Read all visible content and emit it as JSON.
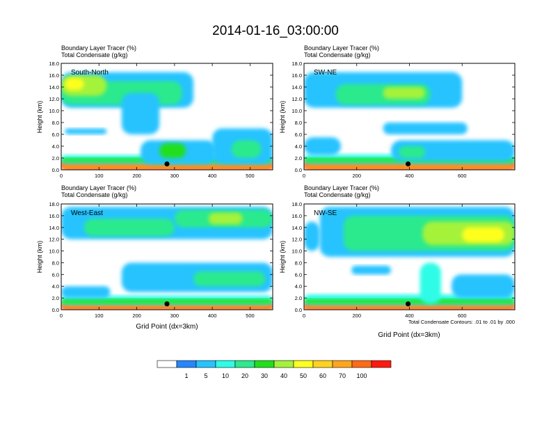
{
  "title": "2014-01-16_03:00:00",
  "panel_header_line1": "Boundary Layer Tracer   (%)",
  "panel_header_line2": "Total Condensate   (g/kg)",
  "y_axis_label": "Height (km)",
  "x_axis_label": "Grid Point (dx=3km)",
  "contour_note": "Total Condensate Contours: .01 to .01 by .000",
  "colorbar": {
    "colors": [
      "#ffffff",
      "#2686ff",
      "#27c3ff",
      "#2efce6",
      "#2cea8d",
      "#22df1c",
      "#a5f23a",
      "#ffff1f",
      "#ffd21f",
      "#ffa51c",
      "#ff6a16",
      "#ff1a10"
    ],
    "labels": [
      "1",
      "5",
      "10",
      "20",
      "30",
      "40",
      "50",
      "60",
      "70",
      "100"
    ]
  },
  "chart_data": [
    {
      "type": "heatmap",
      "panel": "South-North",
      "xlim": [
        0,
        560
      ],
      "ylim": [
        0,
        18
      ],
      "x_ticks": [
        "0",
        "100",
        "200",
        "300",
        "400",
        "500"
      ],
      "y_ticks": [
        "0.0",
        "2.0",
        "4.0",
        "6.0",
        "8.0",
        "10.0",
        "12.0",
        "14.0",
        "16.0",
        "18.0"
      ],
      "marker": {
        "x": 280,
        "y": 1.0
      },
      "blobs": [
        {
          "x0": 0,
          "x1": 560,
          "y0": 0,
          "y1": 1.6,
          "level": 11
        },
        {
          "x0": 0,
          "x1": 560,
          "y0": 0.1,
          "y1": 1.0,
          "level": 9
        },
        {
          "x0": 0,
          "x1": 560,
          "y0": 1.0,
          "y1": 2.5,
          "level": 3
        },
        {
          "x0": 0,
          "x1": 560,
          "y0": 1.3,
          "y1": 2.0,
          "level": 5
        },
        {
          "x0": 0,
          "x1": 350,
          "y0": 10.5,
          "y1": 16.5,
          "level": 2
        },
        {
          "x0": 0,
          "x1": 320,
          "y0": 11.0,
          "y1": 15.0,
          "level": 4
        },
        {
          "x0": 0,
          "x1": 120,
          "y0": 12.5,
          "y1": 16.0,
          "level": 6
        },
        {
          "x0": 10,
          "x1": 60,
          "y0": 13.5,
          "y1": 15.5,
          "level": 7
        },
        {
          "x0": 160,
          "x1": 260,
          "y0": 6.0,
          "y1": 13.0,
          "level": 2
        },
        {
          "x0": 10,
          "x1": 120,
          "y0": 6.0,
          "y1": 7.0,
          "level": 2
        },
        {
          "x0": 210,
          "x1": 410,
          "y0": 1.0,
          "y1": 5.0,
          "level": 2
        },
        {
          "x0": 260,
          "x1": 330,
          "y0": 2.0,
          "y1": 4.5,
          "level": 5
        },
        {
          "x0": 400,
          "x1": 560,
          "y0": 1.0,
          "y1": 7.0,
          "level": 2
        },
        {
          "x0": 450,
          "x1": 530,
          "y0": 2.0,
          "y1": 5.0,
          "level": 4
        }
      ]
    },
    {
      "type": "heatmap",
      "panel": "SW-NE",
      "xlim": [
        0,
        800
      ],
      "ylim": [
        0,
        18
      ],
      "x_ticks": [
        "0",
        "200",
        "400",
        "600"
      ],
      "y_ticks": [
        "0.0",
        "2.0",
        "4.0",
        "6.0",
        "8.0",
        "10.0",
        "12.0",
        "14.0",
        "16.0",
        "18.0"
      ],
      "marker": {
        "x": 395,
        "y": 1.0
      },
      "blobs": [
        {
          "x0": 0,
          "x1": 800,
          "y0": 0,
          "y1": 1.6,
          "level": 11
        },
        {
          "x0": 0,
          "x1": 800,
          "y0": 0.1,
          "y1": 1.0,
          "level": 9
        },
        {
          "x0": 0,
          "x1": 800,
          "y0": 1.0,
          "y1": 2.6,
          "level": 3
        },
        {
          "x0": 0,
          "x1": 800,
          "y0": 1.3,
          "y1": 2.0,
          "level": 5
        },
        {
          "x0": 0,
          "x1": 600,
          "y0": 10.5,
          "y1": 16.5,
          "level": 2
        },
        {
          "x0": 120,
          "x1": 480,
          "y0": 11.0,
          "y1": 14.5,
          "level": 4
        },
        {
          "x0": 300,
          "x1": 460,
          "y0": 12.0,
          "y1": 14.0,
          "level": 6
        },
        {
          "x0": 300,
          "x1": 620,
          "y0": 6.0,
          "y1": 8.0,
          "level": 2
        },
        {
          "x0": 0,
          "x1": 140,
          "y0": 2.5,
          "y1": 5.5,
          "level": 2
        },
        {
          "x0": 330,
          "x1": 800,
          "y0": 1.5,
          "y1": 5.0,
          "level": 2
        },
        {
          "x0": 360,
          "x1": 460,
          "y0": 2.0,
          "y1": 4.0,
          "level": 4
        }
      ]
    },
    {
      "type": "heatmap",
      "panel": "West-East",
      "xlim": [
        0,
        560
      ],
      "ylim": [
        0,
        18
      ],
      "x_ticks": [
        "0",
        "100",
        "200",
        "300",
        "400",
        "500"
      ],
      "y_ticks": [
        "0.0",
        "2.0",
        "4.0",
        "6.0",
        "8.0",
        "10.0",
        "12.0",
        "14.0",
        "16.0",
        "18.0"
      ],
      "marker": {
        "x": 280,
        "y": 1.0
      },
      "blobs": [
        {
          "x0": 0,
          "x1": 560,
          "y0": 0,
          "y1": 1.2,
          "level": 11
        },
        {
          "x0": 0,
          "x1": 560,
          "y0": 0.1,
          "y1": 0.8,
          "level": 9
        },
        {
          "x0": 0,
          "x1": 560,
          "y0": 0.8,
          "y1": 2.4,
          "level": 3
        },
        {
          "x0": 0,
          "x1": 560,
          "y0": 1.0,
          "y1": 1.8,
          "level": 5
        },
        {
          "x0": 0,
          "x1": 560,
          "y0": 12.0,
          "y1": 17.5,
          "level": 2
        },
        {
          "x0": 60,
          "x1": 300,
          "y0": 12.5,
          "y1": 15.5,
          "level": 4
        },
        {
          "x0": 300,
          "x1": 560,
          "y0": 14.0,
          "y1": 17.0,
          "level": 4
        },
        {
          "x0": 390,
          "x1": 480,
          "y0": 14.5,
          "y1": 16.5,
          "level": 6
        },
        {
          "x0": 160,
          "x1": 560,
          "y0": 3.0,
          "y1": 8.0,
          "level": 2
        },
        {
          "x0": 350,
          "x1": 540,
          "y0": 4.0,
          "y1": 6.5,
          "level": 4
        },
        {
          "x0": 0,
          "x1": 130,
          "y0": 2.0,
          "y1": 4.0,
          "level": 2
        }
      ]
    },
    {
      "type": "heatmap",
      "panel": "NW-SE",
      "xlim": [
        0,
        800
      ],
      "ylim": [
        0,
        18
      ],
      "x_ticks": [
        "0",
        "200",
        "400",
        "600"
      ],
      "y_ticks": [
        "0.0",
        "2.0",
        "4.0",
        "6.0",
        "8.0",
        "10.0",
        "12.0",
        "14.0",
        "16.0",
        "18.0"
      ],
      "marker": {
        "x": 395,
        "y": 1.0
      },
      "blobs": [
        {
          "x0": 0,
          "x1": 800,
          "y0": 0,
          "y1": 1.2,
          "level": 11
        },
        {
          "x0": 0,
          "x1": 800,
          "y0": 0.1,
          "y1": 0.8,
          "level": 9
        },
        {
          "x0": 0,
          "x1": 800,
          "y0": 0.8,
          "y1": 2.6,
          "level": 3
        },
        {
          "x0": 0,
          "x1": 800,
          "y0": 1.0,
          "y1": 1.8,
          "level": 5
        },
        {
          "x0": 60,
          "x1": 800,
          "y0": 9.0,
          "y1": 17.5,
          "level": 2
        },
        {
          "x0": 150,
          "x1": 800,
          "y0": 10.0,
          "y1": 16.0,
          "level": 4
        },
        {
          "x0": 450,
          "x1": 800,
          "y0": 11.0,
          "y1": 15.0,
          "level": 6
        },
        {
          "x0": 600,
          "x1": 760,
          "y0": 11.5,
          "y1": 14.0,
          "level": 7
        },
        {
          "x0": 440,
          "x1": 520,
          "y0": 1.0,
          "y1": 8.0,
          "level": 3
        },
        {
          "x0": 180,
          "x1": 330,
          "y0": 6.0,
          "y1": 7.5,
          "level": 2
        },
        {
          "x0": 0,
          "x1": 60,
          "y0": 10.0,
          "y1": 15.0,
          "level": 2
        },
        {
          "x0": 560,
          "x1": 800,
          "y0": 2.0,
          "y1": 6.0,
          "level": 2
        }
      ]
    }
  ]
}
